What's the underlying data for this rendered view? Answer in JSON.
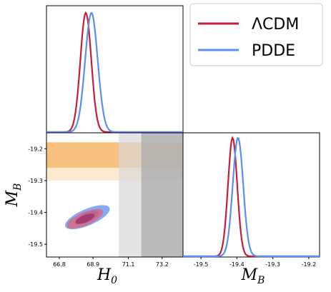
{
  "chart_data": [
    {
      "panel": "H0 marginal",
      "type": "line",
      "xlabel": "",
      "ylabel": "",
      "xlim": [
        66.0,
        74.5
      ],
      "series": [
        {
          "name": "ΛCDM",
          "color": "#c41e3a",
          "peak_x": 68.45,
          "sigma": 0.34
        },
        {
          "name": "PDDE",
          "color": "#5b8ff0",
          "peak_x": 68.8,
          "sigma": 0.39
        }
      ]
    },
    {
      "panel": "M_B vs H0 joint",
      "type": "scatter",
      "xlabel": "H_0",
      "ylabel": "M_B",
      "xlim": [
        66.0,
        74.5
      ],
      "ylim": [
        -19.54,
        -19.15
      ],
      "xticks": [
        "66.8",
        "68.9",
        "71.1",
        "73.2"
      ],
      "xtick_values": [
        66.8,
        68.9,
        71.1,
        73.2
      ],
      "yticks": [
        "-19.2",
        "-19.3",
        "-19.4",
        "-19.5"
      ],
      "ytick_values": [
        -19.2,
        -19.3,
        -19.4,
        -19.5
      ],
      "contours": [
        {
          "name": "PDDE",
          "color": "#5b8ff0",
          "center": [
            68.55,
            -19.415
          ],
          "level": "2sigma"
        },
        {
          "name": "PDDE",
          "color": "#4169e1",
          "center": [
            68.55,
            -19.415
          ],
          "level": "1sigma"
        },
        {
          "name": "ΛCDM",
          "color": "#e06075",
          "center": [
            68.4,
            -19.42
          ],
          "level": "2sigma"
        },
        {
          "name": "ΛCDM",
          "color": "#a0306a",
          "center": [
            68.4,
            -19.42
          ],
          "level": "1sigma"
        }
      ],
      "bands": [
        {
          "axis": "y",
          "range": [
            -19.3,
            -19.18
          ],
          "color": "#fde6c8"
        },
        {
          "axis": "y",
          "range": [
            -19.26,
            -19.18
          ],
          "color": "#f6b870"
        },
        {
          "axis": "x",
          "range": [
            70.5,
            74.5
          ],
          "color": "#d9d9d9"
        },
        {
          "axis": "x",
          "range": [
            71.9,
            74.5
          ],
          "color": "#a8a8a8"
        }
      ]
    },
    {
      "panel": "M_B marginal",
      "type": "line",
      "xlabel": "M_B",
      "ylabel": "",
      "xlim": [
        -19.55,
        -19.17
      ],
      "xticks": [
        "-19.5",
        "-19.4",
        "-19.3",
        "-19.2"
      ],
      "xtick_values": [
        -19.5,
        -19.4,
        -19.3,
        -19.2
      ],
      "series": [
        {
          "name": "ΛCDM",
          "color": "#c41e3a",
          "peak_x": -19.412,
          "sigma": 0.0128
        },
        {
          "name": "PDDE",
          "color": "#5b8ff0",
          "peak_x": -19.397,
          "sigma": 0.0145
        }
      ]
    }
  ],
  "legend": {
    "entries": [
      {
        "label": "ΛCDM",
        "color": "#c41e3a"
      },
      {
        "label": "PDDE",
        "color": "#5b8ff0"
      }
    ]
  },
  "labels": {
    "h0": "H",
    "h0_sub": "0",
    "mb": "M",
    "mb_sub": "B"
  }
}
